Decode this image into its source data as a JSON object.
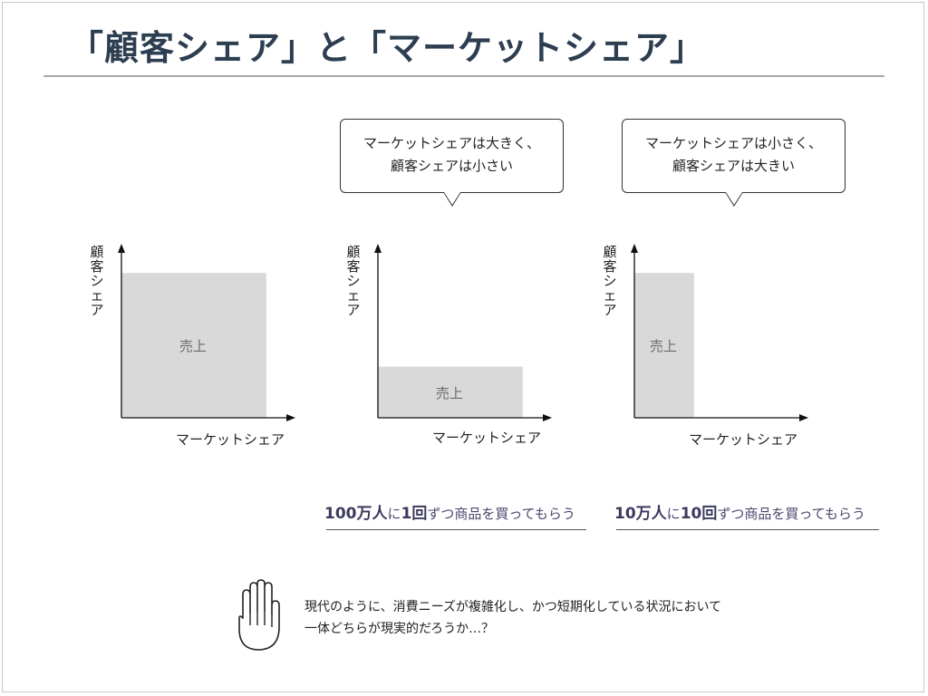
{
  "slide": {
    "title": "「顧客シェア」と「マーケットシェア」"
  },
  "bubbles": [
    {
      "line1": "マーケットシェアは大きく、",
      "line2": "顧客シェアは小さい"
    },
    {
      "line1": "マーケットシェアは小さく、",
      "line2": "顧客シェアは大きい"
    }
  ],
  "chart_data": [
    {
      "type": "area",
      "xlabel": "マーケットシェア",
      "ylabel": "顧客シェア",
      "region_label": "売上",
      "market_share": 0.85,
      "customer_share": 0.85
    },
    {
      "type": "area",
      "xlabel": "マーケットシェア",
      "ylabel": "顧客シェア",
      "region_label": "売上",
      "market_share": 0.85,
      "customer_share": 0.3
    },
    {
      "type": "area",
      "xlabel": "マーケットシェア",
      "ylabel": "顧客シェア",
      "region_label": "売上",
      "market_share": 0.35,
      "customer_share": 0.85
    }
  ],
  "captions": [
    {
      "num1": "100万人",
      "mid1": "に",
      "num2": "1回",
      "rest": "ずつ商品を買ってもらう"
    },
    {
      "num1": "10万人",
      "mid1": "に",
      "num2": "10回",
      "rest": "ずつ商品を買ってもらう"
    }
  ],
  "note": {
    "line1": "現代のように、消費ニーズが複雑化し、かつ短期化している状況において",
    "line2": "一体どちらが現実的だろうか…？"
  },
  "colors": {
    "title": "#2c3e50",
    "area_fill": "#d9d9d9",
    "caption": "#4a4870"
  },
  "icons": {
    "note_icon": "raised-hand-icon"
  }
}
